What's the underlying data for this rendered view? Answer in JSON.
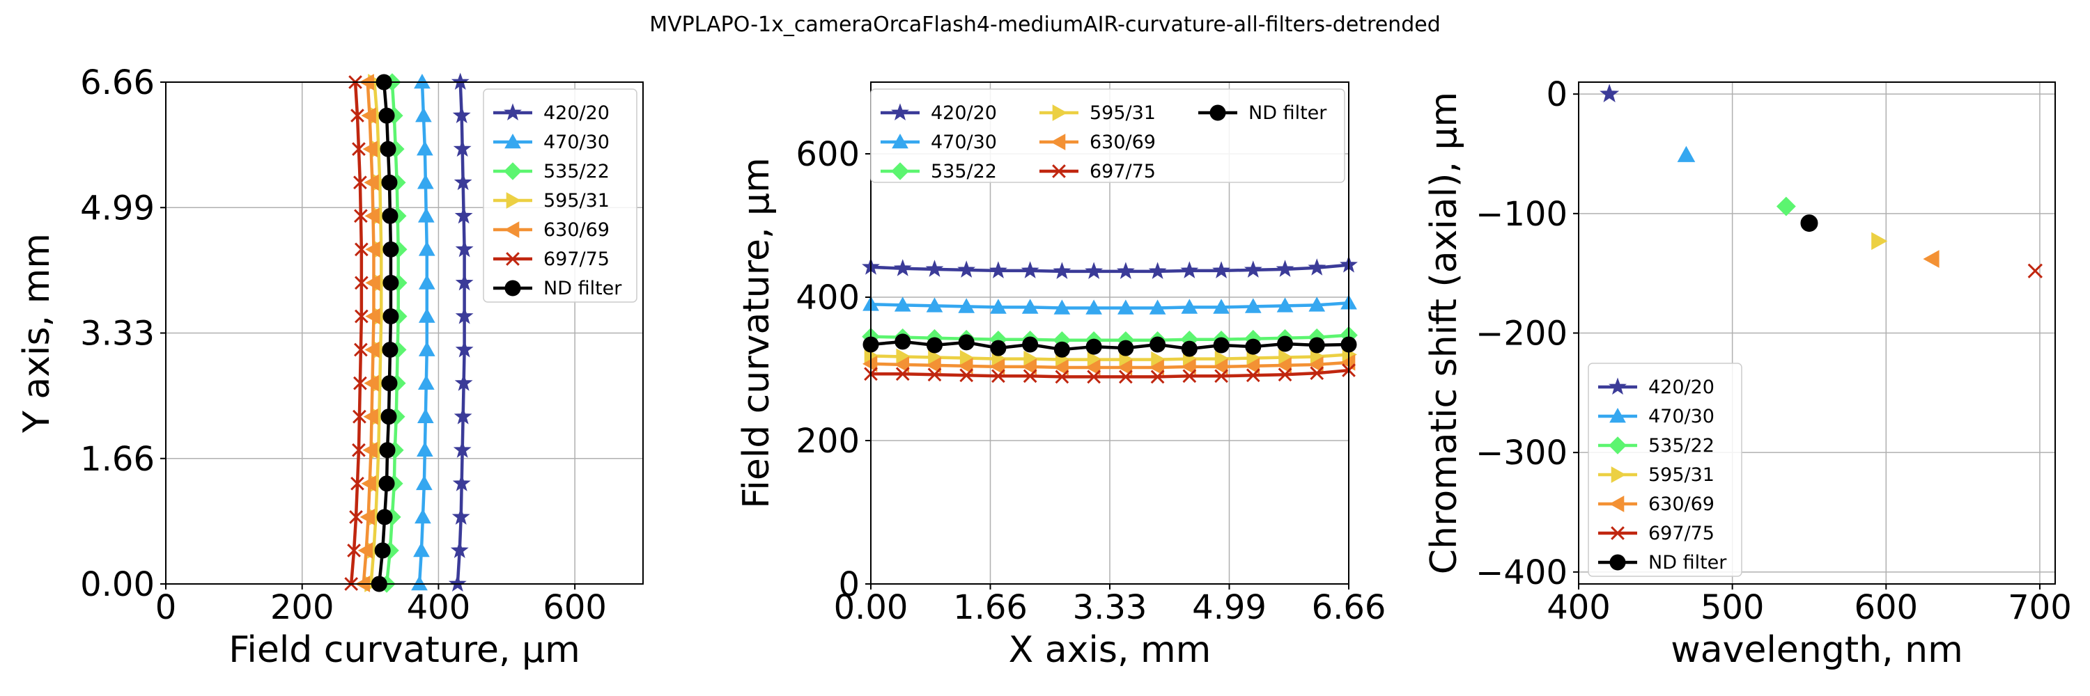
{
  "figure": {
    "title": "MVPLAPO-1x_cameraOrcaFlash4-mediumAIR-curvature-all-filters-detrended"
  },
  "colors": {
    "420/20": "#3b3b98",
    "470/30": "#35a7f0",
    "535/22": "#5cf570",
    "595/31": "#ecd043",
    "630/69": "#f39134",
    "697/75": "#c0260f",
    "ND filter": "#000000"
  },
  "markers": {
    "420/20": "star",
    "470/30": "triangle-up",
    "535/22": "diamond",
    "595/31": "triangle-right",
    "630/69": "triangle-left",
    "697/75": "x",
    "ND filter": "circle"
  },
  "chart_data": [
    {
      "type": "line",
      "xlabel": "Field curvature, µm",
      "ylabel": "Y axis, mm",
      "xlim": [
        0,
        700
      ],
      "ylim": [
        0,
        6.66
      ],
      "xticks": [
        "0",
        "200",
        "400",
        "600"
      ],
      "xtick_values": [
        0,
        200,
        400,
        600
      ],
      "yticks": [
        "0.00",
        "1.66",
        "3.33",
        "4.99",
        "6.66"
      ],
      "ytick_values": [
        0,
        1.665,
        3.33,
        4.995,
        6.66
      ],
      "grid": true,
      "legend": "top-right",
      "y": [
        0.0,
        0.444,
        0.888,
        1.332,
        1.776,
        2.22,
        2.664,
        3.108,
        3.552,
        3.996,
        4.44,
        4.884,
        5.328,
        5.772,
        6.216,
        6.66
      ],
      "series": [
        {
          "name": "420/20",
          "x": [
            428,
            431,
            433,
            434,
            435,
            436,
            437,
            438,
            438,
            438,
            438,
            437,
            436,
            435,
            434,
            432
          ]
        },
        {
          "name": "470/30",
          "x": [
            372,
            375,
            377,
            379,
            380,
            381,
            382,
            383,
            383,
            383,
            383,
            382,
            381,
            380,
            378,
            376
          ]
        },
        {
          "name": "535/22",
          "x": [
            324,
            329,
            332,
            335,
            336,
            338,
            339,
            340,
            341,
            341,
            341,
            340,
            339,
            337,
            335,
            332
          ]
        },
        {
          "name": "595/31",
          "x": [
            301,
            305,
            308,
            310,
            312,
            313,
            314,
            315,
            316,
            316,
            316,
            315,
            314,
            312,
            310,
            306
          ]
        },
        {
          "name": "630/69",
          "x": [
            290,
            294,
            297,
            299,
            301,
            302,
            303,
            304,
            305,
            305,
            305,
            304,
            303,
            301,
            299,
            296
          ]
        },
        {
          "name": "697/75",
          "x": [
            272,
            276,
            279,
            281,
            283,
            284,
            285,
            286,
            287,
            287,
            287,
            286,
            285,
            283,
            281,
            278
          ]
        },
        {
          "name": "ND filter",
          "x": [
            313,
            318,
            321,
            324,
            325,
            327,
            328,
            329,
            330,
            330,
            330,
            329,
            328,
            326,
            324,
            320
          ]
        }
      ]
    },
    {
      "type": "line",
      "xlabel": "X axis, mm",
      "ylabel": "Field curvature, µm",
      "xlim": [
        0,
        6.66
      ],
      "ylim": [
        0,
        700
      ],
      "xticks": [
        "0.00",
        "1.66",
        "3.33",
        "4.99",
        "6.66"
      ],
      "xtick_values": [
        0,
        1.665,
        3.33,
        4.995,
        6.66
      ],
      "yticks": [
        "0",
        "200",
        "400",
        "600"
      ],
      "ytick_values": [
        0,
        200,
        400,
        600
      ],
      "grid": true,
      "legend": "top",
      "x": [
        0.0,
        0.444,
        0.888,
        1.332,
        1.776,
        2.22,
        2.664,
        3.108,
        3.552,
        3.996,
        4.44,
        4.884,
        5.328,
        5.772,
        6.216,
        6.66
      ],
      "series": [
        {
          "name": "420/20",
          "values": [
            442,
            440,
            439,
            438,
            437,
            437,
            436,
            436,
            436,
            436,
            437,
            437,
            438,
            439,
            441,
            445
          ]
        },
        {
          "name": "470/30",
          "values": [
            390,
            389,
            388,
            387,
            386,
            386,
            385,
            385,
            385,
            385,
            386,
            386,
            387,
            388,
            389,
            392
          ]
        },
        {
          "name": "535/22",
          "values": [
            345,
            344,
            343,
            342,
            341,
            341,
            340,
            340,
            340,
            340,
            341,
            341,
            342,
            343,
            344,
            347
          ]
        },
        {
          "name": "595/31",
          "values": [
            318,
            317,
            316,
            315,
            314,
            314,
            313,
            313,
            313,
            313,
            314,
            314,
            315,
            316,
            317,
            320
          ]
        },
        {
          "name": "630/69",
          "values": [
            307,
            306,
            305,
            304,
            303,
            303,
            302,
            302,
            302,
            302,
            303,
            303,
            304,
            305,
            306,
            309
          ]
        },
        {
          "name": "697/75",
          "values": [
            293,
            293,
            292,
            291,
            290,
            290,
            289,
            289,
            289,
            289,
            290,
            290,
            291,
            292,
            294,
            298
          ]
        },
        {
          "name": "ND filter",
          "values": [
            334,
            338,
            333,
            337,
            329,
            334,
            327,
            331,
            329,
            334,
            328,
            333,
            331,
            335,
            333,
            334
          ]
        }
      ]
    },
    {
      "type": "scatter",
      "xlabel": "wavelength, nm",
      "ylabel": "Chromatic shift (axial), µm",
      "xlim": [
        400,
        710
      ],
      "ylim": [
        -410,
        10
      ],
      "xticks": [
        "400",
        "500",
        "600",
        "700"
      ],
      "xtick_values": [
        400,
        500,
        600,
        700
      ],
      "yticks": [
        "0",
        "−100",
        "−200",
        "−300",
        "−400"
      ],
      "ytick_values": [
        0,
        -100,
        -200,
        -300,
        -400
      ],
      "grid": true,
      "legend": "bottom-left",
      "series": [
        {
          "name": "420/20",
          "x": 420,
          "y": 0
        },
        {
          "name": "470/30",
          "x": 470,
          "y": -51
        },
        {
          "name": "535/22",
          "x": 535,
          "y": -94
        },
        {
          "name": "595/31",
          "x": 595,
          "y": -123
        },
        {
          "name": "630/69",
          "x": 630,
          "y": -138
        },
        {
          "name": "697/75",
          "x": 697,
          "y": -148
        },
        {
          "name": "ND filter",
          "x": 550,
          "y": -108
        }
      ]
    }
  ]
}
